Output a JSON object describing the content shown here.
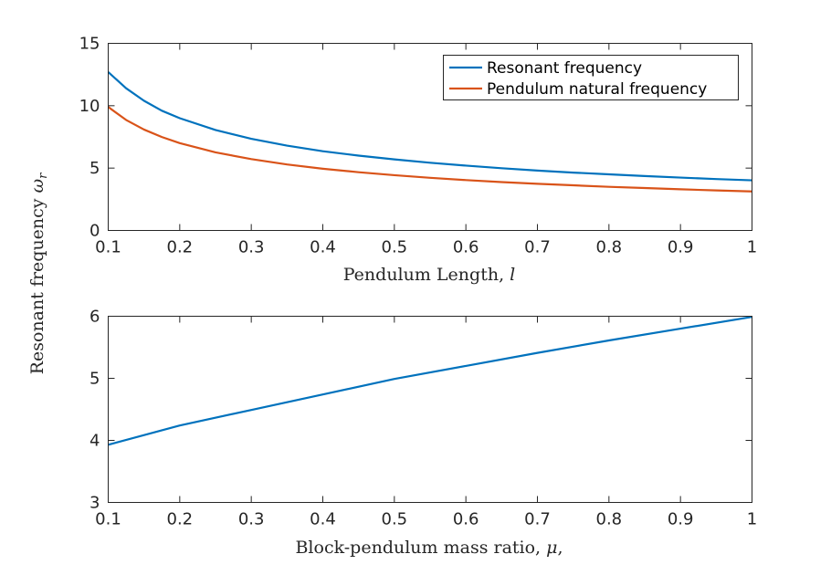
{
  "chart_data": [
    {
      "type": "line",
      "xlabel_text": "Pendulum Length, ",
      "xlabel_var": "l",
      "x_ticks": [
        "0.1",
        "0.2",
        "0.3",
        "0.4",
        "0.5",
        "0.6",
        "0.7",
        "0.8",
        "0.9",
        "1"
      ],
      "y_ticks": [
        "0",
        "5",
        "10",
        "15"
      ],
      "xlim": [
        0.1,
        1
      ],
      "ylim": [
        0,
        15
      ],
      "grid": false,
      "legend_position": "top-right",
      "series": [
        {
          "name": "Resonant frequency",
          "color": "#0072BD",
          "x": [
            0.1,
            0.125,
            0.15,
            0.175,
            0.2,
            0.25,
            0.3,
            0.35,
            0.4,
            0.45,
            0.5,
            0.55,
            0.6,
            0.65,
            0.7,
            0.75,
            0.8,
            0.85,
            0.9,
            0.95,
            1.0
          ],
          "y": [
            12.7,
            11.4,
            10.4,
            9.6,
            9.0,
            8.05,
            7.35,
            6.8,
            6.35,
            6.0,
            5.7,
            5.43,
            5.2,
            4.99,
            4.8,
            4.64,
            4.5,
            4.36,
            4.24,
            4.12,
            4.02
          ]
        },
        {
          "name": "Pendulum natural frequency",
          "color": "#D95319",
          "x": [
            0.1,
            0.125,
            0.15,
            0.175,
            0.2,
            0.25,
            0.3,
            0.35,
            0.4,
            0.45,
            0.5,
            0.55,
            0.6,
            0.65,
            0.7,
            0.75,
            0.8,
            0.85,
            0.9,
            0.95,
            1.0
          ],
          "y": [
            9.9,
            8.86,
            8.09,
            7.49,
            7.0,
            6.26,
            5.72,
            5.29,
            4.95,
            4.67,
            4.43,
            4.22,
            4.04,
            3.88,
            3.74,
            3.62,
            3.5,
            3.4,
            3.3,
            3.21,
            3.13
          ]
        }
      ]
    },
    {
      "type": "line",
      "xlabel_text": "Block-pendulum mass ratio, ",
      "xlabel_var": "μ",
      "xlabel_suffix": ",",
      "x_ticks": [
        "0.1",
        "0.2",
        "0.3",
        "0.4",
        "0.5",
        "0.6",
        "0.7",
        "0.8",
        "0.9",
        "1"
      ],
      "y_ticks": [
        "3",
        "4",
        "5",
        "6"
      ],
      "xlim": [
        0.1,
        1
      ],
      "ylim": [
        3,
        6
      ],
      "grid": false,
      "series": [
        {
          "color": "#0072BD",
          "x": [
            0.1,
            0.2,
            0.3,
            0.4,
            0.5,
            0.6,
            0.7,
            0.8,
            0.9,
            1.0
          ],
          "y": [
            3.93,
            4.24,
            4.49,
            4.74,
            4.99,
            5.2,
            5.41,
            5.61,
            5.8,
            5.99
          ]
        }
      ]
    }
  ],
  "shared_ylabel_text": "Resonant frequency ",
  "shared_ylabel_var": "ω",
  "shared_ylabel_sub": "r"
}
